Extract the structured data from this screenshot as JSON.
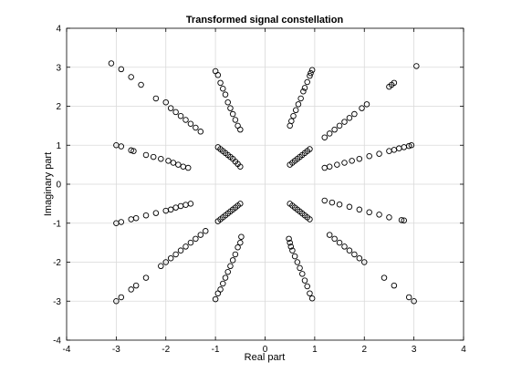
{
  "chart_data": {
    "type": "scatter",
    "title": "Transformed signal constellation",
    "xlabel": "Real part",
    "ylabel": "Imaginary part",
    "xlim": [
      -4,
      4
    ],
    "ylim": [
      -4,
      4
    ],
    "xticks": [
      -4,
      -3,
      -2,
      -1,
      0,
      1,
      2,
      3,
      4
    ],
    "yticks": [
      -4,
      -3,
      -2,
      -1,
      0,
      1,
      2,
      3,
      4
    ],
    "grid": true,
    "marker": "open-circle",
    "color": "#000000",
    "series": [
      {
        "points": [
          [
            3.05,
            3.03
          ],
          [
            2.6,
            2.6
          ],
          [
            2.55,
            2.55
          ],
          [
            2.5,
            2.5
          ],
          [
            2.05,
            2.05
          ],
          [
            1.95,
            1.95
          ],
          [
            1.8,
            1.8
          ],
          [
            1.7,
            1.7
          ],
          [
            1.6,
            1.6
          ],
          [
            1.5,
            1.5
          ],
          [
            1.4,
            1.4
          ],
          [
            1.3,
            1.3
          ],
          [
            1.2,
            1.2
          ],
          [
            0.95,
            2.93
          ],
          [
            0.92,
            2.85
          ],
          [
            0.9,
            2.78
          ],
          [
            0.85,
            2.62
          ],
          [
            0.8,
            2.47
          ],
          [
            0.77,
            2.38
          ],
          [
            0.72,
            2.2
          ],
          [
            0.67,
            2.05
          ],
          [
            0.62,
            1.9
          ],
          [
            0.57,
            1.75
          ],
          [
            0.53,
            1.62
          ],
          [
            0.5,
            1.5
          ],
          [
            0.9,
            0.9
          ],
          [
            0.85,
            0.85
          ],
          [
            0.8,
            0.8
          ],
          [
            0.75,
            0.75
          ],
          [
            0.7,
            0.7
          ],
          [
            0.65,
            0.65
          ],
          [
            0.6,
            0.6
          ],
          [
            0.55,
            0.55
          ],
          [
            0.5,
            0.5
          ],
          [
            2.95,
            1.0
          ],
          [
            2.9,
            0.98
          ],
          [
            2.8,
            0.95
          ],
          [
            2.7,
            0.92
          ],
          [
            2.6,
            0.88
          ],
          [
            2.5,
            0.85
          ],
          [
            2.3,
            0.78
          ],
          [
            2.1,
            0.72
          ],
          [
            1.9,
            0.65
          ],
          [
            1.75,
            0.6
          ],
          [
            1.6,
            0.55
          ],
          [
            1.45,
            0.5
          ],
          [
            1.3,
            0.45
          ],
          [
            1.2,
            0.42
          ],
          [
            2.8,
            -0.93
          ],
          [
            2.75,
            -0.92
          ],
          [
            2.5,
            -0.85
          ],
          [
            2.3,
            -0.78
          ],
          [
            2.1,
            -0.72
          ],
          [
            1.9,
            -0.65
          ],
          [
            1.7,
            -0.58
          ],
          [
            1.5,
            -0.52
          ],
          [
            1.35,
            -0.47
          ],
          [
            1.2,
            -0.42
          ],
          [
            0.9,
            -0.9
          ],
          [
            0.85,
            -0.85
          ],
          [
            0.8,
            -0.8
          ],
          [
            0.75,
            -0.75
          ],
          [
            0.7,
            -0.7
          ],
          [
            0.65,
            -0.65
          ],
          [
            0.6,
            -0.6
          ],
          [
            0.55,
            -0.55
          ],
          [
            0.5,
            -0.5
          ],
          [
            3.0,
            -3.0
          ],
          [
            2.9,
            -2.9
          ],
          [
            2.6,
            -2.6
          ],
          [
            2.4,
            -2.4
          ],
          [
            2.0,
            -2.0
          ],
          [
            1.9,
            -1.9
          ],
          [
            1.8,
            -1.8
          ],
          [
            1.7,
            -1.7
          ],
          [
            1.6,
            -1.6
          ],
          [
            1.5,
            -1.5
          ],
          [
            1.4,
            -1.4
          ],
          [
            1.3,
            -1.3
          ],
          [
            0.95,
            -2.93
          ],
          [
            0.9,
            -2.8
          ],
          [
            0.85,
            -2.62
          ],
          [
            0.8,
            -2.47
          ],
          [
            0.75,
            -2.3
          ],
          [
            0.7,
            -2.15
          ],
          [
            0.65,
            -2.0
          ],
          [
            0.6,
            -1.85
          ],
          [
            0.55,
            -1.7
          ],
          [
            0.52,
            -1.6
          ],
          [
            0.5,
            -1.5
          ],
          [
            0.48,
            -1.4
          ],
          [
            -0.5,
            -0.5
          ],
          [
            -0.55,
            -0.55
          ],
          [
            -0.6,
            -0.6
          ],
          [
            -0.65,
            -0.65
          ],
          [
            -0.7,
            -0.7
          ],
          [
            -0.75,
            -0.75
          ],
          [
            -0.8,
            -0.8
          ],
          [
            -0.85,
            -0.85
          ],
          [
            -0.9,
            -0.9
          ],
          [
            -0.95,
            -0.95
          ],
          [
            -1.0,
            -2.95
          ],
          [
            -0.95,
            -2.8
          ],
          [
            -0.9,
            -2.7
          ],
          [
            -0.85,
            -2.55
          ],
          [
            -0.8,
            -2.4
          ],
          [
            -0.75,
            -2.25
          ],
          [
            -0.7,
            -2.1
          ],
          [
            -0.65,
            -1.95
          ],
          [
            -0.6,
            -1.8
          ],
          [
            -0.55,
            -1.62
          ],
          [
            -0.5,
            -1.5
          ],
          [
            -0.48,
            -1.35
          ],
          [
            -1.2,
            -1.2
          ],
          [
            -1.3,
            -1.3
          ],
          [
            -1.4,
            -1.4
          ],
          [
            -1.5,
            -1.5
          ],
          [
            -1.6,
            -1.6
          ],
          [
            -1.7,
            -1.7
          ],
          [
            -1.8,
            -1.8
          ],
          [
            -1.9,
            -1.9
          ],
          [
            -2.0,
            -2.0
          ],
          [
            -2.1,
            -2.1
          ],
          [
            -2.4,
            -2.4
          ],
          [
            -2.6,
            -2.6
          ],
          [
            -2.7,
            -2.7
          ],
          [
            -2.9,
            -2.9
          ],
          [
            -3.0,
            -3.0
          ],
          [
            -1.5,
            -0.5
          ],
          [
            -1.6,
            -0.53
          ],
          [
            -1.7,
            -0.56
          ],
          [
            -1.8,
            -0.6
          ],
          [
            -1.9,
            -0.65
          ],
          [
            -2.0,
            -0.68
          ],
          [
            -2.2,
            -0.74
          ],
          [
            -2.4,
            -0.8
          ],
          [
            -2.6,
            -0.87
          ],
          [
            -2.7,
            -0.9
          ],
          [
            -2.9,
            -0.97
          ],
          [
            -3.0,
            -1.0
          ],
          [
            -1.55,
            0.42
          ],
          [
            -1.65,
            0.45
          ],
          [
            -1.75,
            0.5
          ],
          [
            -1.85,
            0.55
          ],
          [
            -1.95,
            0.6
          ],
          [
            -2.1,
            0.65
          ],
          [
            -2.25,
            0.7
          ],
          [
            -2.4,
            0.75
          ],
          [
            -2.65,
            0.85
          ],
          [
            -2.7,
            0.87
          ],
          [
            -2.9,
            0.97
          ],
          [
            -3.0,
            1.0
          ],
          [
            -0.5,
            0.45
          ],
          [
            -0.55,
            0.52
          ],
          [
            -0.6,
            0.58
          ],
          [
            -0.65,
            0.65
          ],
          [
            -0.7,
            0.7
          ],
          [
            -0.75,
            0.75
          ],
          [
            -0.8,
            0.8
          ],
          [
            -0.85,
            0.85
          ],
          [
            -0.9,
            0.9
          ],
          [
            -0.95,
            0.95
          ],
          [
            -1.0,
            2.9
          ],
          [
            -0.95,
            2.8
          ],
          [
            -0.9,
            2.6
          ],
          [
            -0.85,
            2.45
          ],
          [
            -0.8,
            2.3
          ],
          [
            -0.75,
            2.1
          ],
          [
            -0.7,
            1.95
          ],
          [
            -0.65,
            1.8
          ],
          [
            -0.6,
            1.65
          ],
          [
            -0.55,
            1.5
          ],
          [
            -0.5,
            1.4
          ],
          [
            -1.3,
            1.35
          ],
          [
            -1.4,
            1.45
          ],
          [
            -1.5,
            1.55
          ],
          [
            -1.6,
            1.65
          ],
          [
            -1.7,
            1.75
          ],
          [
            -1.8,
            1.85
          ],
          [
            -1.9,
            1.95
          ],
          [
            -2.0,
            2.1
          ],
          [
            -2.2,
            2.2
          ],
          [
            -2.5,
            2.55
          ],
          [
            -2.7,
            2.75
          ],
          [
            -2.9,
            2.95
          ],
          [
            -3.1,
            3.1
          ]
        ]
      }
    ]
  }
}
